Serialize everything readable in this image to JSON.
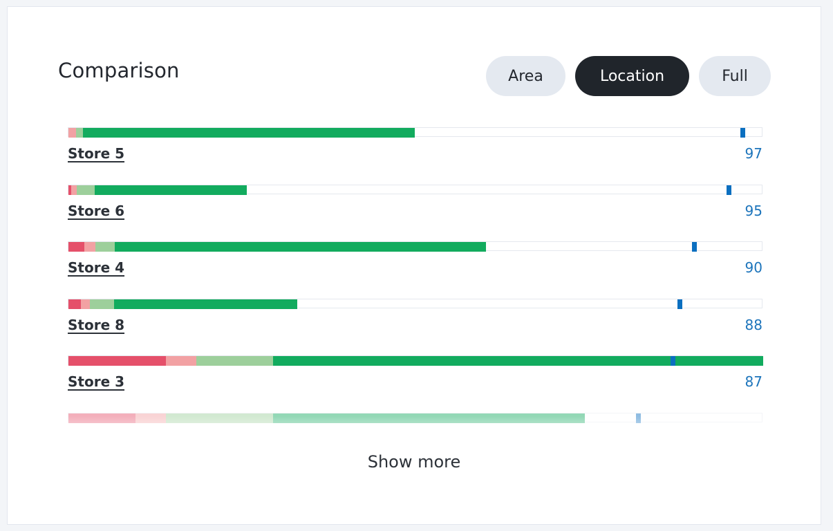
{
  "header": {
    "title": "Comparison",
    "tabs": [
      {
        "label": "Area",
        "active": false
      },
      {
        "label": "Location",
        "active": true
      },
      {
        "label": "Full",
        "active": false
      }
    ]
  },
  "colors": {
    "dark_red": "#e5506a",
    "light_red": "#f2a1a3",
    "light_green": "#9dcf9b",
    "green": "#12ab5e",
    "marker": "#0b6fc0",
    "score_text": "#1c74bb"
  },
  "stores": [
    {
      "name": "Store 5",
      "score": "97",
      "segments": {
        "dark_red": 0.0,
        "light_red": 1.1,
        "light_green": 1.0,
        "green": 47.8
      },
      "marker": 97
    },
    {
      "name": "Store 6",
      "score": "95",
      "segments": {
        "dark_red": 0.4,
        "light_red": 0.8,
        "light_green": 2.6,
        "green": 21.9
      },
      "marker": 95
    },
    {
      "name": "Store 4",
      "score": "90",
      "segments": {
        "dark_red": 2.3,
        "light_red": 1.6,
        "light_green": 2.8,
        "green": 53.4
      },
      "marker": 90
    },
    {
      "name": "Store 8",
      "score": "88",
      "segments": {
        "dark_red": 1.8,
        "light_red": 1.3,
        "light_green": 3.5,
        "green": 26.3
      },
      "marker": 88
    },
    {
      "name": "Store 3",
      "score": "87",
      "segments": {
        "dark_red": 14.0,
        "light_red": 4.4,
        "light_green": 11.1,
        "green": 70.5
      },
      "marker": 87
    }
  ],
  "partial_row": {
    "segments": {
      "dark_red": 9.7,
      "light_red": 4.3,
      "light_green": 15.5,
      "green": 44.8
    },
    "marker": 82
  },
  "show_more": "Show more"
}
